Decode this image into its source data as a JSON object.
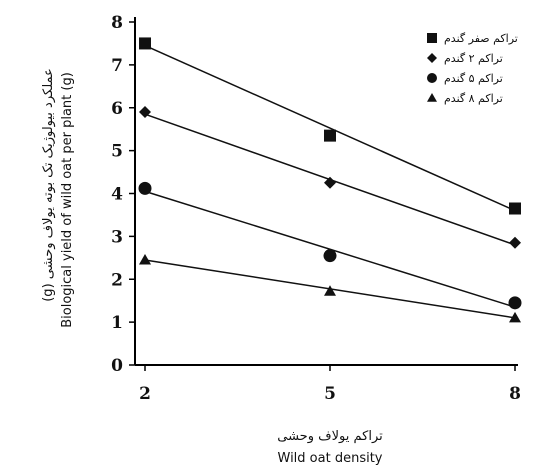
{
  "chart_data": {
    "type": "scatter",
    "x": [
      2,
      5,
      8
    ],
    "xticks": [
      "2",
      "5",
      "8"
    ],
    "yticks": [
      "0",
      "1",
      "2",
      "3",
      "4",
      "5",
      "6",
      "7",
      "8"
    ],
    "xlim": [
      2,
      8
    ],
    "ylim": [
      0,
      8
    ],
    "xlabel_fa": "تراکم یولاف وحشی",
    "xlabel_en": "Wild oat density",
    "ylabel_fa": "عملکرد بیولوژیک تک بوته یولاف وحشی (g)",
    "ylabel_en": "Biological yield of wild oat per plant (g)",
    "grid": false,
    "legend_position": "top-right",
    "series": [
      {
        "name": "تراکم صفر گندم",
        "marker": "square",
        "values": [
          7.5,
          5.35,
          3.65
        ],
        "fit": [
          7.45,
          5.52,
          3.6
        ]
      },
      {
        "name": "تراکم ۲ گندم",
        "marker": "diamond",
        "values": [
          5.9,
          4.25,
          2.85
        ],
        "fit": [
          5.85,
          4.35,
          2.8
        ]
      },
      {
        "name": "تراکم ۵ گندم",
        "marker": "circle",
        "values": [
          4.12,
          2.55,
          1.45
        ],
        "fit": [
          4.05,
          2.7,
          1.35
        ]
      },
      {
        "name": "تراکم ۸ گندم",
        "marker": "triangle",
        "values": [
          2.45,
          1.72,
          1.1
        ],
        "fit": [
          2.45,
          1.77,
          1.1
        ]
      }
    ]
  }
}
